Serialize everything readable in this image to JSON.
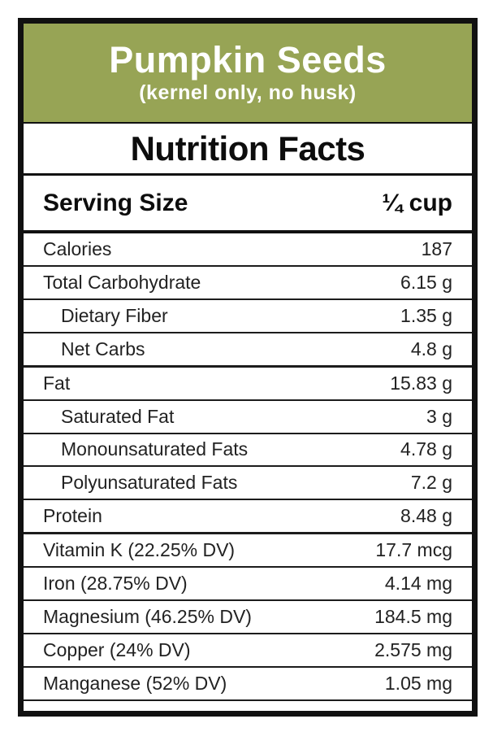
{
  "label_card": {
    "header": {
      "title": "Pumpkin Seeds",
      "subtitle": "(kernel only, no husk)",
      "bg_color": "#97A455",
      "text_color": "#FFFFFF"
    },
    "section_title": "Nutrition Facts",
    "serving": {
      "label": "Serving Size",
      "value": "¼ cup"
    },
    "rows": [
      {
        "label": "Calories",
        "value": "187",
        "indent": false
      },
      {
        "label": "Total Carbohydrate",
        "value": "6.15 g",
        "indent": false
      },
      {
        "label": "Dietary Fiber",
        "value": "1.35 g",
        "indent": true
      },
      {
        "label": "Net Carbs",
        "value": "4.8 g",
        "indent": true
      },
      {
        "label": "Fat",
        "value": "15.83 g",
        "indent": false
      },
      {
        "label": "Saturated Fat",
        "value": "3 g",
        "indent": true
      },
      {
        "label": "Monounsaturated Fats",
        "value": "4.78 g",
        "indent": true
      },
      {
        "label": "Polyunsaturated Fats",
        "value": "7.2 g",
        "indent": true
      },
      {
        "label": "Protein",
        "value": "8.48 g",
        "indent": false
      },
      {
        "label": "Vitamin K (22.25% DV)",
        "value": "17.7 mcg",
        "indent": false
      },
      {
        "label": "Iron (28.75% DV)",
        "value": "4.14 mg",
        "indent": false
      },
      {
        "label": "Magnesium (46.25% DV)",
        "value": "184.5 mg",
        "indent": false
      },
      {
        "label": "Copper (24% DV)",
        "value": "2.575 mg",
        "indent": false
      },
      {
        "label": "Manganese (52% DV)",
        "value": "1.05 mg",
        "indent": false
      }
    ],
    "colors": {
      "border": "#111111",
      "row_text": "#222222"
    }
  }
}
